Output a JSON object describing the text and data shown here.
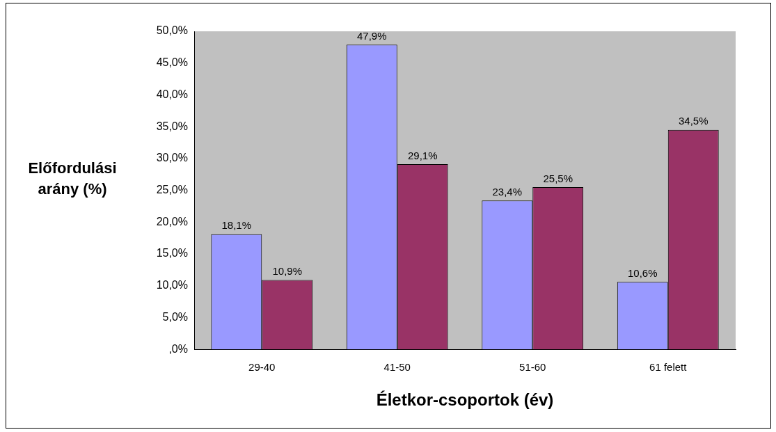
{
  "chart_data": {
    "type": "bar",
    "xlabel": "Életkor-csoportok (év)",
    "ylabel": "Előfordulási arány (%)",
    "categories": [
      "29-40",
      "41-50",
      "51-60",
      "61 felett"
    ],
    "series": [
      {
        "color": "#9999ff",
        "values": [
          18.1,
          47.9,
          23.4,
          10.6
        ],
        "value_labels": [
          "18,1%",
          "47,9%",
          "23,4%",
          "10,6%"
        ]
      },
      {
        "color": "#993366",
        "values": [
          10.9,
          29.1,
          25.5,
          34.5
        ],
        "value_labels": [
          "10,9%",
          "29,1%",
          "25,5%",
          "34,5%"
        ]
      }
    ],
    "ylim": [
      0,
      50
    ],
    "yticks": [
      {
        "value": 0,
        "label": ",0%"
      },
      {
        "value": 5,
        "label": "5,0%"
      },
      {
        "value": 10,
        "label": "10,0%"
      },
      {
        "value": 15,
        "label": "15,0%"
      },
      {
        "value": 20,
        "label": "20,0%"
      },
      {
        "value": 25,
        "label": "25,0%"
      },
      {
        "value": 30,
        "label": "30,0%"
      },
      {
        "value": 35,
        "label": "35,0%"
      },
      {
        "value": 40,
        "label": "40,0%"
      },
      {
        "value": 45,
        "label": "45,0%"
      },
      {
        "value": 50,
        "label": "50,0%"
      }
    ],
    "grid": false,
    "legend": false
  }
}
